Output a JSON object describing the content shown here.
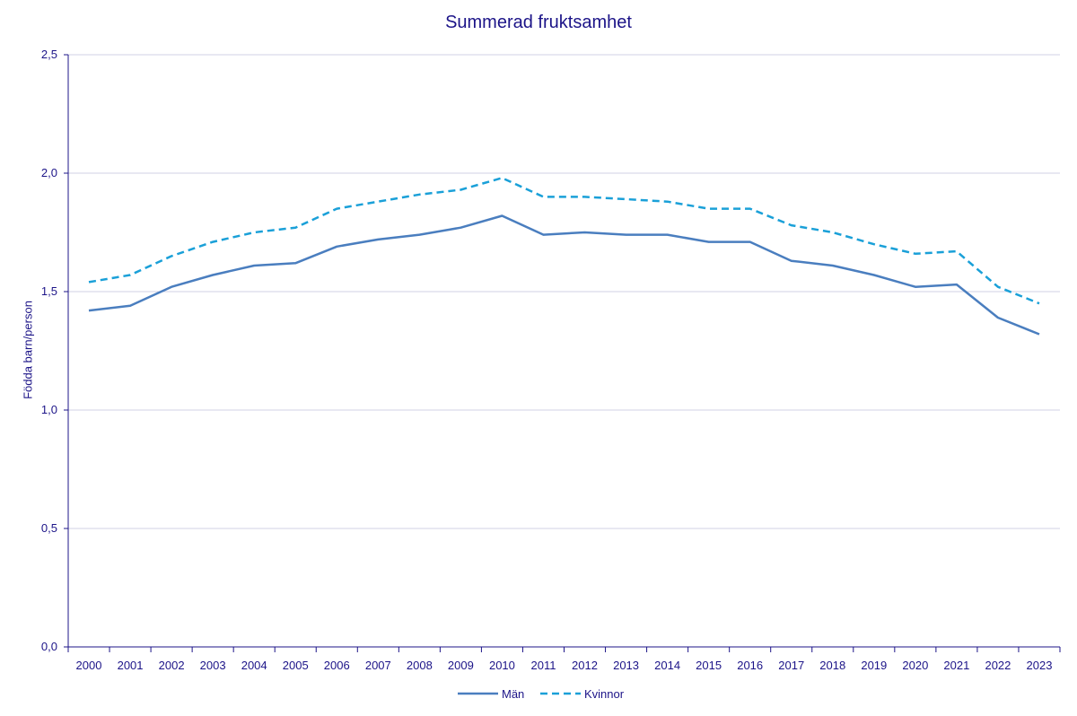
{
  "chart_data": {
    "type": "line",
    "title": "Summerad fruktsamhet",
    "xlabel": "",
    "ylabel": "Födda barn/person",
    "ylim": [
      0,
      2.5
    ],
    "yticks": [
      "0,0",
      "0,5",
      "1,0",
      "1,5",
      "2,0",
      "2,5"
    ],
    "ytick_values": [
      0,
      0.5,
      1.0,
      1.5,
      2.0,
      2.5
    ],
    "grid": true,
    "legend_position": "bottom",
    "categories": [
      "2000",
      "2001",
      "2002",
      "2003",
      "2004",
      "2005",
      "2006",
      "2007",
      "2008",
      "2009",
      "2010",
      "2011",
      "2012",
      "2013",
      "2014",
      "2015",
      "2016",
      "2017",
      "2018",
      "2019",
      "2020",
      "2021",
      "2022",
      "2023"
    ],
    "series": [
      {
        "name": "Män",
        "color": "#4a7ebf",
        "style": "solid",
        "values": [
          1.42,
          1.44,
          1.52,
          1.57,
          1.61,
          1.62,
          1.69,
          1.72,
          1.74,
          1.77,
          1.82,
          1.74,
          1.75,
          1.74,
          1.74,
          1.71,
          1.71,
          1.63,
          1.61,
          1.57,
          1.52,
          1.53,
          1.39,
          1.32
        ]
      },
      {
        "name": "Kvinnor",
        "color": "#1aa0d8",
        "style": "dashed",
        "values": [
          1.54,
          1.57,
          1.65,
          1.71,
          1.75,
          1.77,
          1.85,
          1.88,
          1.91,
          1.93,
          1.98,
          1.9,
          1.9,
          1.89,
          1.88,
          1.85,
          1.85,
          1.78,
          1.75,
          1.7,
          1.66,
          1.67,
          1.52,
          1.45
        ]
      }
    ]
  },
  "colors": {
    "axis": "#1c1488",
    "grid": "#d0d0e6"
  }
}
